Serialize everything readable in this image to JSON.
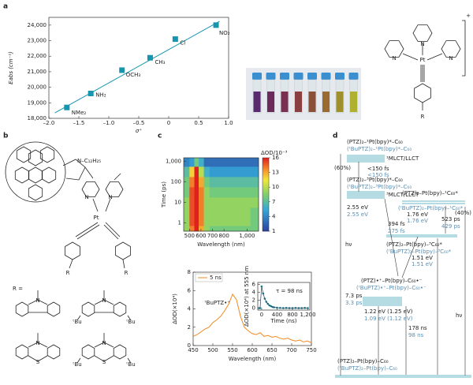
{
  "panel_labels": [
    "a",
    "b",
    "c",
    "d"
  ],
  "chart_data": [
    {
      "type": "scatter",
      "xlabel": "σ⁺",
      "ylabel": "Eabs (cm⁻¹)",
      "x": [
        -1.7,
        -1.3,
        -0.78,
        -0.31,
        0.11,
        0.79
      ],
      "values": [
        18700,
        19600,
        21100,
        21900,
        23100,
        24000
      ],
      "point_labels": [
        "NMe₂",
        "NH₂",
        "OCH₃",
        "CH₃",
        "Cl",
        "NO₂"
      ],
      "color": "#1596b0",
      "fit_x": [
        -1.9,
        0.85
      ],
      "fit_values": [
        18350,
        24250
      ],
      "xlim": [
        -2,
        1
      ],
      "xticks": [
        {
          "value": -2,
          "label": "–2.0"
        },
        {
          "value": -1.5,
          "label": "–1.5"
        },
        {
          "value": -1,
          "label": "–1.0"
        },
        {
          "value": -0.5,
          "label": "–0.5"
        },
        0,
        0.5,
        {
          "value": 1,
          "label": "1.0"
        }
      ],
      "ylim": [
        18000,
        24500
      ],
      "yticks": [
        {
          "value": 18000,
          "label": "18,000"
        },
        {
          "value": 19000,
          "label": "19,000"
        },
        {
          "value": 20000,
          "label": "20,000"
        },
        {
          "value": 21000,
          "label": "21,000"
        },
        {
          "value": 22000,
          "label": "22,000"
        },
        {
          "value": 23000,
          "label": "23,000"
        },
        {
          "value": 24000,
          "label": "24,000"
        }
      ]
    },
    {
      "type": "heatmap",
      "xlabel": "Wavelength (nm)",
      "ylabel": "Time (ps)",
      "colorbar_label": "ΔOD/10⁻³",
      "x": [
        475,
        525,
        560,
        600,
        650,
        700,
        760,
        820,
        880,
        940,
        1000,
        1060
      ],
      "y": [
        1000,
        300,
        100,
        30,
        10,
        3,
        1,
        0.5
      ],
      "values": [
        [
          4,
          5,
          8,
          6,
          3,
          3,
          3,
          3,
          3,
          3,
          3,
          3
        ],
        [
          7,
          12,
          16,
          10,
          6,
          5,
          5,
          5,
          5,
          5,
          5,
          5
        ],
        [
          8,
          14,
          16,
          13,
          8,
          7,
          7,
          7,
          7,
          7,
          7,
          7
        ],
        [
          8,
          15,
          16,
          14,
          9,
          8,
          8,
          8,
          8,
          8,
          8,
          8
        ],
        [
          9,
          15,
          16,
          14,
          9,
          9,
          9,
          9,
          9,
          9,
          9,
          9
        ],
        [
          9,
          15,
          16,
          14,
          9,
          9,
          9,
          9,
          9,
          9,
          9,
          8
        ],
        [
          9,
          15,
          16,
          14,
          9,
          9,
          9,
          9,
          9,
          9,
          9,
          8
        ],
        [
          9,
          14,
          16,
          13,
          9,
          8,
          8,
          8,
          8,
          8,
          8,
          8
        ]
      ],
      "xlim": [
        450,
        1100
      ],
      "xticks": [
        500,
        600,
        700,
        800,
        {
          "value": 1000,
          "label": "1,000"
        }
      ],
      "ylim": [
        0.4,
        1500
      ],
      "log_y": true,
      "yticks": [
        1,
        10,
        100,
        {
          "value": 1000,
          "label": "1,000"
        }
      ],
      "clim": [
        1,
        16
      ],
      "cticks": [
        1,
        4,
        7,
        10,
        13,
        16
      ]
    },
    {
      "type": "line",
      "xlabel": "Wavelength (nm)",
      "ylabel": "ΔOD(×10⁴)",
      "annotation": "ᵗBuPTZ•⁺",
      "x": [
        450,
        460,
        470,
        480,
        490,
        500,
        510,
        520,
        530,
        540,
        550,
        560,
        570,
        580,
        590,
        600,
        610,
        620,
        630,
        640,
        650,
        660,
        670,
        680,
        690,
        700,
        710,
        720,
        730,
        740,
        750
      ],
      "series": [
        {
          "name": "5 ns",
          "color": "#f08a24",
          "values": [
            1.0,
            1.2,
            1.5,
            1.8,
            2.0,
            2.5,
            2.8,
            3.2,
            3.8,
            4.5,
            5.6,
            5.0,
            3.2,
            2.0,
            1.6,
            1.3,
            1.2,
            1.4,
            1.0,
            1.1,
            0.9,
            1.0,
            0.8,
            0.7,
            0.8,
            0.6,
            0.5,
            0.6,
            0.4,
            0.5,
            0.3
          ]
        }
      ],
      "xlim": [
        450,
        750
      ],
      "xticks": [
        450,
        500,
        550,
        600,
        650,
        700,
        750
      ],
      "ylim": [
        0,
        8
      ],
      "yticks": [
        0,
        2,
        4,
        6,
        8
      ],
      "legend": "upper-left"
    },
    {
      "type": "scatter",
      "xlabel": "Time (ns)",
      "ylabel": "ΔOD(×10⁴) at 555 nm",
      "annotation": "τ = 98 ns",
      "x": [
        -80,
        -40,
        0,
        40,
        80,
        120,
        160,
        200,
        240,
        280,
        320,
        400,
        480,
        560,
        640,
        720,
        800,
        880,
        960,
        1040,
        1120,
        1200
      ],
      "values": [
        0,
        0,
        5.5,
        3.7,
        2.4,
        1.6,
        1.1,
        0.7,
        0.5,
        0.3,
        0.2,
        0.1,
        0.05,
        0,
        0.05,
        0,
        0,
        0.05,
        0,
        0,
        0.05,
        0
      ],
      "fit_values": [
        0,
        0,
        5.5,
        3.7,
        2.4,
        1.6,
        1.1,
        0.7,
        0.5,
        0.3,
        0.2,
        0.1,
        0.05,
        0,
        0,
        0,
        0,
        0,
        0,
        0,
        0,
        0
      ],
      "color": "#1a8a9a",
      "fit_color": "#2b3a55",
      "xlim": [
        -100,
        1250
      ],
      "xticks": [
        0,
        400,
        800,
        {
          "value": 1200,
          "label": "1,200"
        }
      ],
      "ylim": [
        -0.5,
        6.5
      ],
      "yticks": [
        0,
        2,
        4,
        6
      ]
    }
  ],
  "structures": [
    "+",
    "N",
    "Pt",
    "N",
    "N",
    "R",
    "N–C₁₂H₂₅",
    "N",
    "N",
    "Pt",
    "R",
    "R",
    "R =",
    "N",
    "N",
    "ᵗBu",
    "ᵗBu",
    "N",
    "S",
    "N",
    "S",
    "ᵗBu",
    "ᵗBu"
  ],
  "panel_d": {
    "texts": [
      "(PTZ)₂–¹Pt(bpy)*–C₆₀",
      "(ᵗBuPTZ)₂–¹Pt(bpy)*–C₆₀",
      "¹MLCT/LLCT",
      "(60%)",
      "<150 fs",
      "<150 fs",
      "(PTZ)₂–³Pt(bpy)*–C₆₀",
      "(ᵗBuPTZ)₂–³Pt(bpy)*–C₆₀",
      "³MLCT/LLCT",
      "2.55 eV",
      "2.55 eV",
      "(PTZ)₂–Pt(bpy)–¹C₆₀*",
      "(ᵗBuPTZ)₂–Pt(bpy)–¹C₆₀*",
      "1.76 eV",
      "1.76 eV",
      "(40%)",
      "394 fs",
      "275 fs",
      "523 ps",
      "429 ps",
      "(PTZ)₂–Pt(bpy)–³C₆₀*",
      "(ᵗBuPTZ)₂–Pt(bpy)–³C₆₀*",
      "1.51 eV",
      "1.51 eV",
      "(PTZ)•⁺–Pt(bpy)–C₆₀•⁻",
      "(ᵗBuPTZ)•⁺–Pt(bpy)–C₆₀•⁻",
      "7.3 ps",
      "3.3 ps",
      "1.22 eV (1.25 eV)",
      "1.09 eV (1.12 eV)",
      "hν",
      "hν",
      "178 ns",
      "98 ns",
      "(PTZ)₂–Pt(bpy)–C₆₀",
      "(ᵗBuPTZ)₂–Pt(bpy)–C₆₀"
    ]
  }
}
